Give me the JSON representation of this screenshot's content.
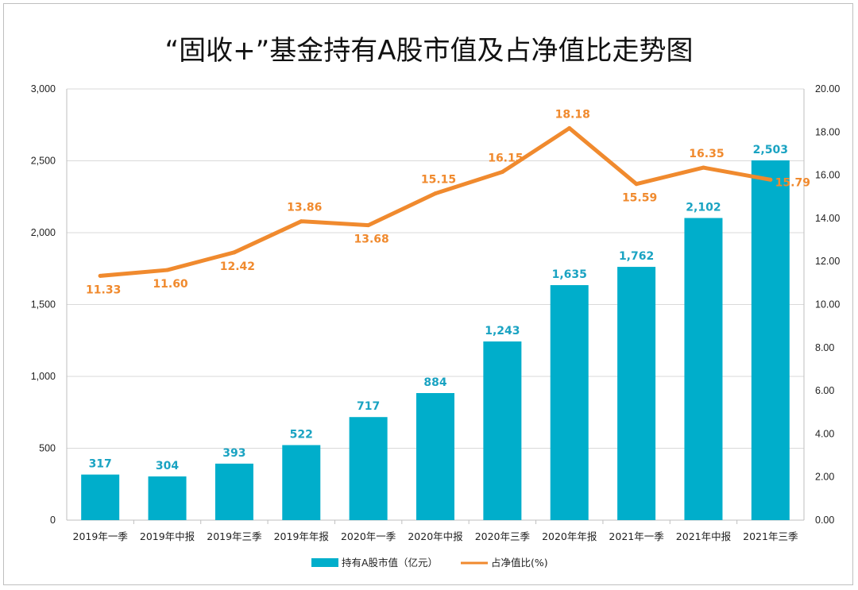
{
  "title": "“固收+”基金持有A股市值及占净值比走势图",
  "colors": {
    "bar": "#00aecb",
    "line": "#f08a2e",
    "bar_label": "#1aa3c2",
    "line_label": "#f08a2e",
    "grid": "#d9d9d9"
  },
  "chart_data": {
    "type": "bar",
    "categories": [
      "2019年一季",
      "2019年中报",
      "2019年三季",
      "2019年年报",
      "2020年一季",
      "2020年中报",
      "2020年三季",
      "2020年年报",
      "2021年一季",
      "2021年中报",
      "2021年三季"
    ],
    "series": [
      {
        "name": "持有A股市值（亿元）",
        "type": "bar",
        "axis": "left",
        "values": [
          317,
          304,
          393,
          522,
          717,
          884,
          1243,
          1635,
          1762,
          2102,
          2503
        ],
        "labels": [
          "317",
          "304",
          "393",
          "522",
          "717",
          "884",
          "1,243",
          "1,635",
          "1,762",
          "2,102",
          "2,503"
        ]
      },
      {
        "name": "占净值比(%)",
        "type": "line",
        "axis": "right",
        "values": [
          11.33,
          11.6,
          12.42,
          13.86,
          13.68,
          15.15,
          16.15,
          18.18,
          15.59,
          16.35,
          15.79
        ],
        "labels": [
          "11.33",
          "11.60",
          "12.42",
          "13.86",
          "13.68",
          "15.15",
          "16.15",
          "18.18",
          "15.59",
          "16.35",
          "15.79"
        ]
      }
    ],
    "y_left": {
      "lim": [
        0,
        3000
      ],
      "ticks": [
        "0",
        "500",
        "1,000",
        "1,500",
        "2,000",
        "2,500",
        "3,000"
      ],
      "tick_values": [
        0,
        500,
        1000,
        1500,
        2000,
        2500,
        3000
      ]
    },
    "y_right": {
      "lim": [
        0,
        20
      ],
      "ticks": [
        "0.00",
        "2.00",
        "4.00",
        "6.00",
        "8.00",
        "10.00",
        "12.00",
        "14.00",
        "16.00",
        "18.00",
        "20.00"
      ],
      "tick_values": [
        0,
        2,
        4,
        6,
        8,
        10,
        12,
        14,
        16,
        18,
        20
      ]
    },
    "grid": true,
    "legend_position": "bottom"
  }
}
